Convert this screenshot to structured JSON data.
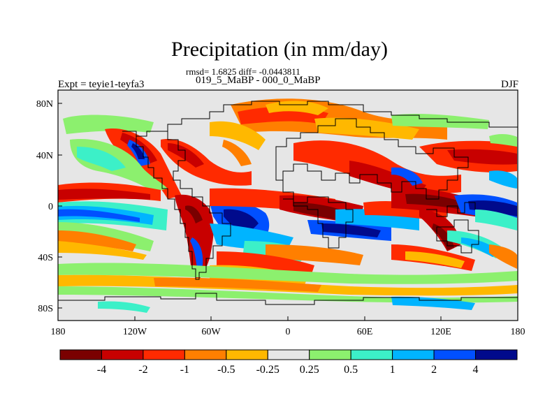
{
  "title": "Precipitation (in mm/day)",
  "stats": "rmsd= 1.6825 diff= -0.0443811",
  "subtitle": "019_5_MaBP - 000_0_MaBP",
  "left_label": "Expt = teyie1-teyfa3",
  "right_label": "DJF",
  "map": {
    "lon_ticks": [
      "180",
      "120W",
      "60W",
      "0",
      "60E",
      "120E",
      "180"
    ],
    "lat_ticks": [
      "80N",
      "40N",
      "0",
      "40S",
      "80S"
    ]
  },
  "colorbar": {
    "colors": [
      "#7a0000",
      "#c80000",
      "#ff2a00",
      "#ff7f00",
      "#ffb800",
      "#e6e6e6",
      "#8cf06e",
      "#3cf0c8",
      "#00b4ff",
      "#0050ff",
      "#000a8c"
    ],
    "labels": [
      "-4",
      "-2",
      "-1",
      "-0.5",
      "-0.25",
      "0.25",
      "0.5",
      "1",
      "2",
      "4"
    ]
  }
}
